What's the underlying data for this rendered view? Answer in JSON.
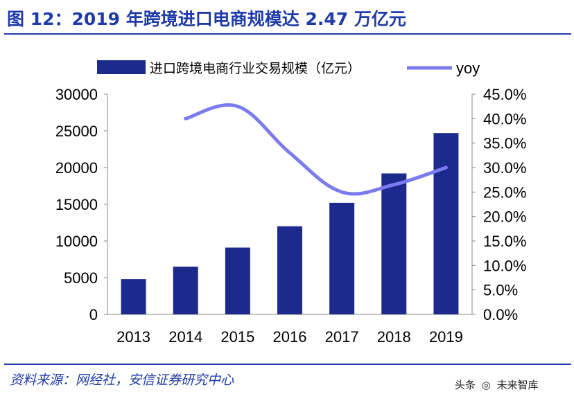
{
  "title": "图 12：2019 年跨境进口电商规模达 2.47 万亿元",
  "source": "资料来源：网经社，安信证券研究中心",
  "watermark": {
    "lead": "头条",
    "brand": "未来智库"
  },
  "colors": {
    "title": "#1F3BA8",
    "bar": "#1B2A8C",
    "line": "#7B7BF0"
  },
  "chart_data": {
    "type": "bar",
    "categories": [
      "2013",
      "2014",
      "2015",
      "2016",
      "2017",
      "2018",
      "2019"
    ],
    "series": [
      {
        "name": "进口跨境电商行业交易规模（亿元）",
        "type": "bar",
        "axis": "left",
        "values": [
          4800,
          6500,
          9100,
          12000,
          15200,
          19200,
          24700
        ]
      },
      {
        "name": "yoy",
        "type": "line",
        "axis": "right",
        "values": [
          null,
          40.0,
          42.5,
          33.0,
          25.0,
          26.5,
          30.0
        ]
      }
    ],
    "y_left": {
      "min": 0,
      "max": 30000,
      "ticks": [
        "0",
        "5000",
        "10000",
        "15000",
        "20000",
        "25000",
        "30000"
      ]
    },
    "y_right": {
      "min": 0,
      "max": 45,
      "ticks": [
        "0.0%",
        "5.0%",
        "10.0%",
        "15.0%",
        "20.0%",
        "25.0%",
        "30.0%",
        "35.0%",
        "40.0%",
        "45.0%"
      ]
    },
    "legend_position": "top"
  }
}
